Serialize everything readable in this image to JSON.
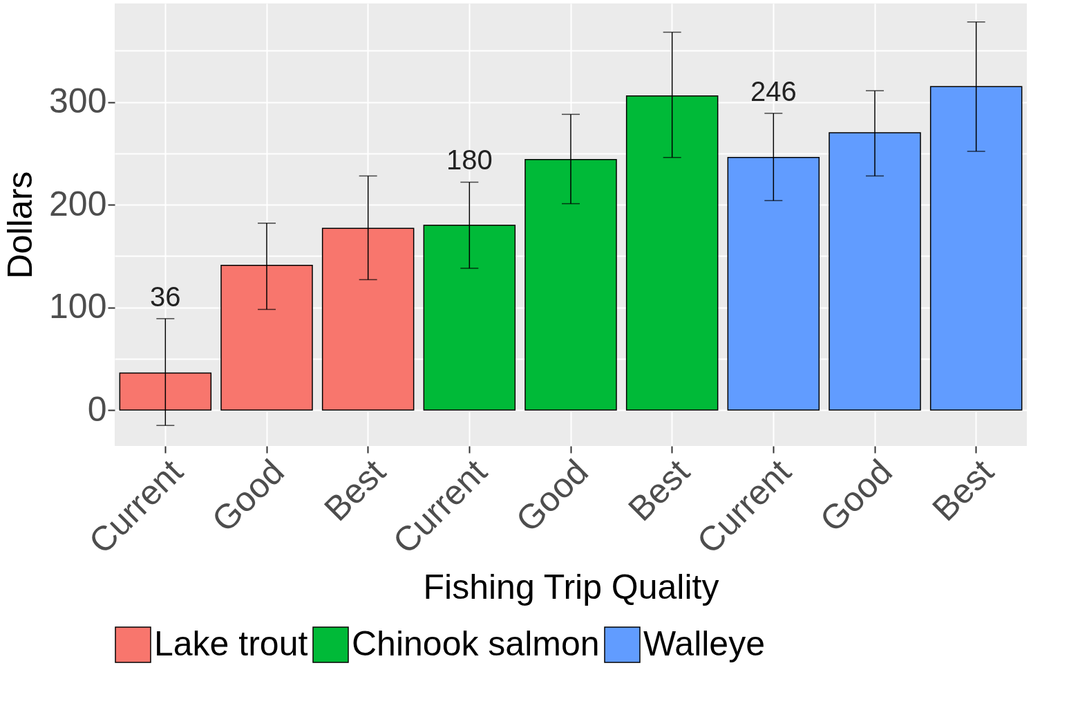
{
  "chart_data": {
    "type": "bar",
    "xlabel": "Fishing Trip Quality",
    "ylabel": "Dollars",
    "categories": [
      "Current",
      "Good",
      "Best",
      "Current",
      "Good",
      "Best",
      "Current",
      "Good",
      "Best"
    ],
    "series": [
      {
        "name": "Lake trout",
        "color": "#f8766d",
        "values": [
          36,
          141,
          177,
          null,
          null,
          null,
          null,
          null,
          null
        ],
        "errors": [
          [
            -15,
            89
          ],
          [
            98,
            182
          ],
          [
            127,
            228
          ],
          null,
          null,
          null,
          null,
          null,
          null
        ],
        "value_labels": [
          "36",
          null,
          null,
          null,
          null,
          null,
          null,
          null,
          null
        ]
      },
      {
        "name": "Chinook salmon",
        "color": "#00ba38",
        "values": [
          null,
          null,
          null,
          180,
          244,
          306,
          null,
          null,
          null
        ],
        "errors": [
          null,
          null,
          null,
          [
            138,
            222
          ],
          [
            201,
            288
          ],
          [
            246,
            368
          ],
          null,
          null,
          null
        ],
        "value_labels": [
          null,
          null,
          null,
          "180",
          null,
          null,
          null,
          null,
          null
        ]
      },
      {
        "name": "Walleye",
        "color": "#619cff",
        "values": [
          null,
          null,
          null,
          null,
          null,
          null,
          246,
          270,
          315
        ],
        "errors": [
          null,
          null,
          null,
          null,
          null,
          null,
          [
            204,
            289
          ],
          [
            228,
            311
          ],
          [
            252,
            378
          ]
        ],
        "value_labels": [
          null,
          null,
          null,
          null,
          null,
          null,
          "246",
          null,
          null
        ]
      }
    ],
    "ylim": [
      -35,
      396
    ],
    "yticks": [
      0,
      {
        "value": 50,
        "label": null
      },
      100,
      {
        "value": 150,
        "label": null
      },
      200,
      {
        "value": 250,
        "label": null
      },
      300,
      {
        "value": 350,
        "label": null
      }
    ],
    "grid": true,
    "legend": "bottom"
  }
}
